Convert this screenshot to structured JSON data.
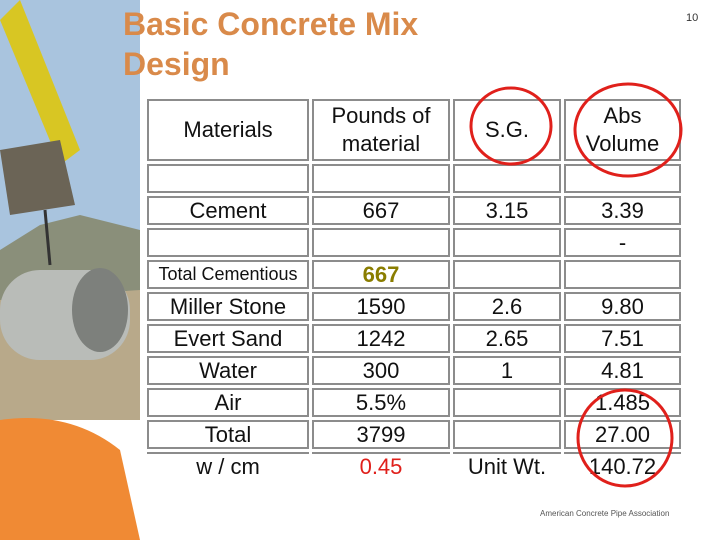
{
  "header": {
    "title": "Basic Concrete Mix Design",
    "page_number": "10"
  },
  "table": {
    "columns": [
      "Materials",
      "Pounds of material",
      "S.G.",
      "Abs Volume"
    ],
    "rows": [
      [
        null,
        null,
        null,
        null
      ],
      [
        "Cement",
        "667",
        "3.15",
        "3.39"
      ],
      [
        null,
        null,
        null,
        "-"
      ],
      [
        "Total Cementious",
        "667",
        null,
        null
      ],
      [
        "Miller Stone",
        "1590",
        "2.6",
        "9.80"
      ],
      [
        "Evert Sand",
        "1242",
        "2.65",
        "7.51"
      ],
      [
        "Water",
        "300",
        "1",
        "4.81"
      ],
      [
        "Air",
        "5.5%",
        null,
        "1.485"
      ],
      [
        "Total",
        "3799",
        null,
        "27.00"
      ]
    ],
    "footer": [
      "w / cm",
      "0.45",
      "Unit Wt.",
      "140.72"
    ]
  },
  "logo": {
    "text": "American Concrete Pipe Association"
  }
}
